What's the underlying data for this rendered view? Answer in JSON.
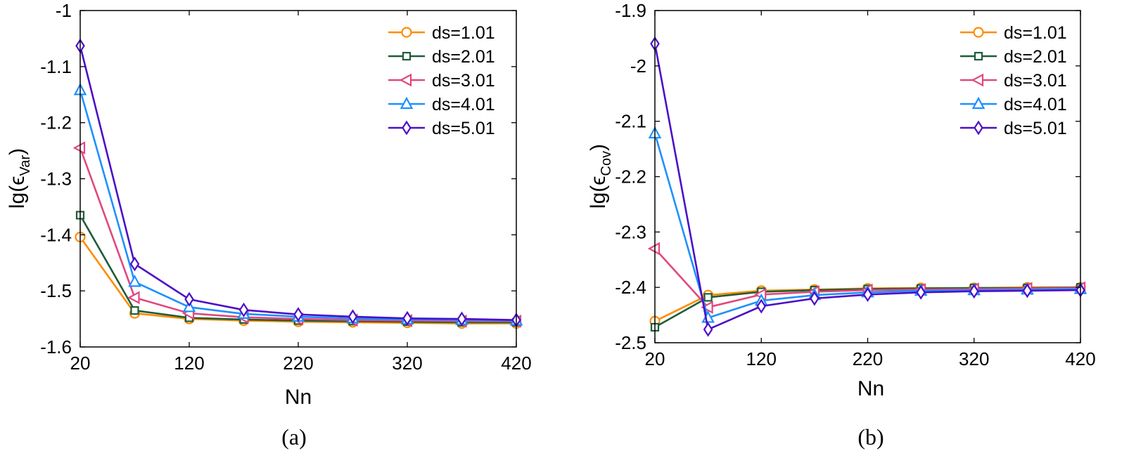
{
  "chart_data": [
    {
      "id": "a",
      "type": "line",
      "caption": "(a)",
      "xlabel": "Nn",
      "ylabel_prefix": "lg(",
      "ylabel_epsilon": "ϵ",
      "ylabel_sub": "Var",
      "ylabel_suffix": ")",
      "xlim": [
        20,
        420
      ],
      "ylim": [
        -1.6,
        -1.0
      ],
      "xticks": [
        20,
        120,
        220,
        320,
        420
      ],
      "xtick_labels": [
        "20",
        "120",
        "220",
        "320",
        "420"
      ],
      "yticks": [
        -1.6,
        -1.5,
        -1.4,
        -1.3,
        -1.2,
        -1.1,
        -1.0
      ],
      "ytick_labels": [
        "-1.6",
        "-1.5",
        "-1.4",
        "-1.3",
        "-1.2",
        "-1.1",
        "-1"
      ],
      "x": [
        20,
        70,
        120,
        170,
        220,
        270,
        320,
        370,
        420
      ],
      "legend_position": "top-right",
      "grid": false,
      "series": [
        {
          "name": "ds=1.01",
          "color": "#ff8c00",
          "marker": "circle",
          "values": [
            -1.404,
            -1.54,
            -1.55,
            -1.553,
            -1.555,
            -1.556,
            -1.557,
            -1.558,
            -1.558
          ]
        },
        {
          "name": "ds=2.01",
          "color": "#1f5c3a",
          "marker": "square",
          "values": [
            -1.365,
            -1.535,
            -1.548,
            -1.551,
            -1.553,
            -1.554,
            -1.555,
            -1.556,
            -1.556
          ]
        },
        {
          "name": "ds=3.01",
          "color": "#e0487f",
          "marker": "triangle-left",
          "values": [
            -1.245,
            -1.512,
            -1.54,
            -1.547,
            -1.55,
            -1.552,
            -1.553,
            -1.554,
            -1.554
          ]
        },
        {
          "name": "ds=4.01",
          "color": "#1e90ff",
          "marker": "triangle-up",
          "values": [
            -1.142,
            -1.484,
            -1.529,
            -1.541,
            -1.546,
            -1.549,
            -1.551,
            -1.552,
            -1.553
          ]
        },
        {
          "name": "ds=5.01",
          "color": "#4b0fc8",
          "marker": "diamond",
          "values": [
            -1.063,
            -1.452,
            -1.515,
            -1.534,
            -1.542,
            -1.546,
            -1.549,
            -1.55,
            -1.552
          ]
        }
      ]
    },
    {
      "id": "b",
      "type": "line",
      "caption": "(b)",
      "xlabel": "Nn",
      "ylabel_prefix": "lg(",
      "ylabel_epsilon": "ϵ",
      "ylabel_sub": "Cov",
      "ylabel_suffix": ")",
      "xlim": [
        20,
        420
      ],
      "ylim": [
        -2.5,
        -1.9
      ],
      "xticks": [
        20,
        120,
        220,
        320,
        420
      ],
      "xtick_labels": [
        "20",
        "120",
        "220",
        "320",
        "420"
      ],
      "yticks": [
        -2.5,
        -2.4,
        -2.3,
        -2.2,
        -2.1,
        -2.0,
        -1.9
      ],
      "ytick_labels": [
        "-2.5",
        "-2.4",
        "-2.3",
        "-2.2",
        "-2.1",
        "-2",
        "-1.9"
      ],
      "x": [
        20,
        70,
        120,
        170,
        220,
        270,
        320,
        370,
        420
      ],
      "legend_position": "top-right",
      "grid": false,
      "series": [
        {
          "name": "ds=1.01",
          "color": "#ff8c00",
          "marker": "circle",
          "values": [
            -2.461,
            -2.414,
            -2.406,
            -2.404,
            -2.402,
            -2.401,
            -2.401,
            -2.4,
            -2.4
          ]
        },
        {
          "name": "ds=2.01",
          "color": "#1f5c3a",
          "marker": "square",
          "values": [
            -2.472,
            -2.418,
            -2.408,
            -2.405,
            -2.403,
            -2.402,
            -2.401,
            -2.401,
            -2.4
          ]
        },
        {
          "name": "ds=3.01",
          "color": "#e0487f",
          "marker": "triangle-left",
          "values": [
            -2.33,
            -2.436,
            -2.413,
            -2.408,
            -2.405,
            -2.404,
            -2.403,
            -2.402,
            -2.401
          ]
        },
        {
          "name": "ds=4.01",
          "color": "#1e90ff",
          "marker": "triangle-up",
          "values": [
            -2.122,
            -2.455,
            -2.424,
            -2.414,
            -2.409,
            -2.406,
            -2.405,
            -2.404,
            -2.403
          ]
        },
        {
          "name": "ds=5.01",
          "color": "#4b0fc8",
          "marker": "diamond",
          "values": [
            -1.96,
            -2.476,
            -2.434,
            -2.42,
            -2.413,
            -2.409,
            -2.407,
            -2.406,
            -2.405
          ]
        }
      ]
    }
  ]
}
